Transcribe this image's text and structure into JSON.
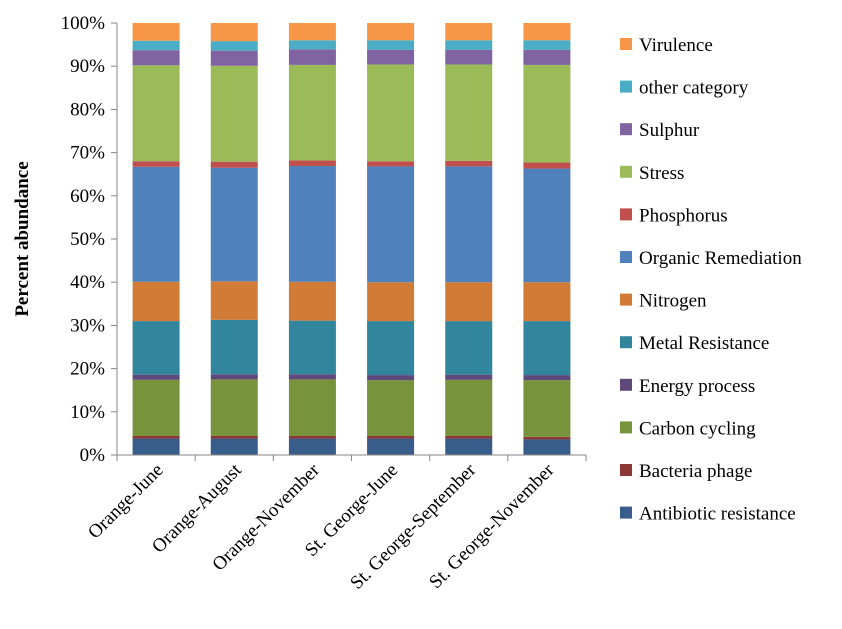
{
  "chart_data": {
    "type": "bar",
    "stacked": true,
    "title": "",
    "xlabel": "",
    "ylabel": "Percent abundance",
    "ylim": [
      0,
      100
    ],
    "yticks": [
      "0%",
      "10%",
      "20%",
      "30%",
      "40%",
      "50%",
      "60%",
      "70%",
      "80%",
      "90%",
      "100%"
    ],
    "grid": false,
    "legend_position": "right",
    "categories": [
      "Orange-June",
      "Orange-August",
      "Orange-November",
      "St. George-June",
      "St. George-September",
      "St. George-November"
    ],
    "series": [
      {
        "name": "Antibiotic resistance",
        "color": "#385D8A",
        "values": [
          3.8,
          3.8,
          3.8,
          3.8,
          3.8,
          3.6
        ]
      },
      {
        "name": "Bacteria phage",
        "color": "#8C3836",
        "values": [
          0.6,
          0.6,
          0.6,
          0.6,
          0.6,
          0.6
        ]
      },
      {
        "name": "Carbon cycling",
        "color": "#77933C",
        "values": [
          13.0,
          13.1,
          13.1,
          12.9,
          13.0,
          13.1
        ]
      },
      {
        "name": "Energy process",
        "color": "#5F497A",
        "values": [
          1.2,
          1.2,
          1.2,
          1.2,
          1.2,
          1.2
        ]
      },
      {
        "name": "Metal Resistance",
        "color": "#31859C",
        "values": [
          12.4,
          12.6,
          12.4,
          12.5,
          12.4,
          12.5
        ]
      },
      {
        "name": "Nitrogen",
        "color": "#D27B37",
        "values": [
          9.1,
          8.9,
          9.0,
          9.0,
          9.0,
          9.0
        ]
      },
      {
        "name": "Organic Remediation",
        "color": "#4F81BD",
        "values": [
          26.6,
          26.3,
          26.8,
          26.8,
          26.8,
          26.3
        ]
      },
      {
        "name": "Phosphorus",
        "color": "#C0504D",
        "values": [
          1.3,
          1.4,
          1.3,
          1.2,
          1.3,
          1.4
        ]
      },
      {
        "name": "Stress",
        "color": "#9BBB59",
        "values": [
          22.2,
          22.2,
          22.1,
          22.4,
          22.3,
          22.6
        ]
      },
      {
        "name": "Sulphur",
        "color": "#8064A2",
        "values": [
          3.5,
          3.5,
          3.6,
          3.4,
          3.4,
          3.5
        ]
      },
      {
        "name": "other category",
        "color": "#4BACC6",
        "values": [
          2.2,
          2.2,
          2.1,
          2.2,
          2.2,
          2.2
        ]
      },
      {
        "name": "Virulence",
        "color": "#F79646",
        "values": [
          4.1,
          4.2,
          4.0,
          4.0,
          4.0,
          4.0
        ]
      }
    ]
  }
}
